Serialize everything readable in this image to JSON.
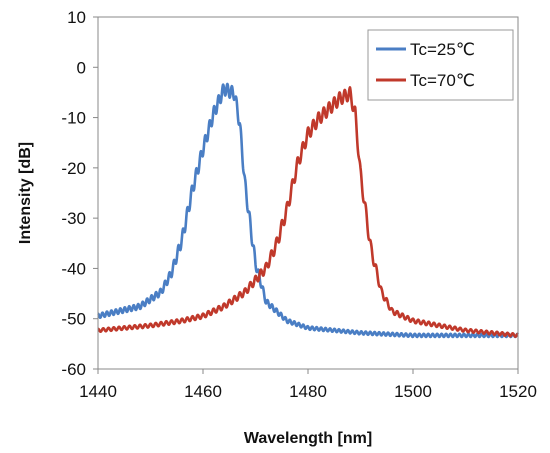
{
  "chart_data": {
    "type": "line",
    "xlabel": "Wavelength [nm]",
    "ylabel": "Intensity [dB]",
    "xlim": [
      1440,
      1520
    ],
    "ylim": [
      -60,
      10
    ],
    "x_ticks": [
      1440,
      1460,
      1480,
      1500,
      1520
    ],
    "y_ticks": [
      10,
      0,
      -10,
      -20,
      -30,
      -40,
      -50,
      -60
    ],
    "grid": false,
    "legend_position": "top-right",
    "series": [
      {
        "name": "Tc=25℃",
        "color": "#4a7ec4",
        "ripple_amplitude_db": 2.5,
        "ripple_period_nm": 0.85,
        "x": [
          1440,
          1444,
          1448,
          1452,
          1454,
          1456,
          1458,
          1460,
          1462,
          1464,
          1466,
          1467,
          1468,
          1470,
          1472,
          1476,
          1480,
          1490,
          1500,
          1510,
          1520
        ],
        "values": [
          -49,
          -48,
          -47,
          -44,
          -40,
          -33,
          -23,
          -15,
          -8,
          -3,
          -4,
          -10,
          -22,
          -38,
          -46,
          -50,
          -51.5,
          -52.5,
          -53,
          -53,
          -53
        ]
      },
      {
        "name": "Tc=70℃",
        "color": "#c0392b",
        "ripple_amplitude_db": 2.5,
        "ripple_period_nm": 1.0,
        "x": [
          1440,
          1450,
          1456,
          1460,
          1464,
          1468,
          1472,
          1474,
          1476,
          1478,
          1480,
          1482,
          1484,
          1486,
          1488,
          1489,
          1490,
          1492,
          1494,
          1496,
          1500,
          1510,
          1520
        ],
        "values": [
          -52,
          -51,
          -50,
          -49,
          -47,
          -44,
          -39,
          -34,
          -27,
          -18,
          -12,
          -9,
          -7,
          -5,
          -4,
          -8,
          -20,
          -35,
          -44,
          -48,
          -50,
          -52,
          -53
        ]
      }
    ]
  }
}
